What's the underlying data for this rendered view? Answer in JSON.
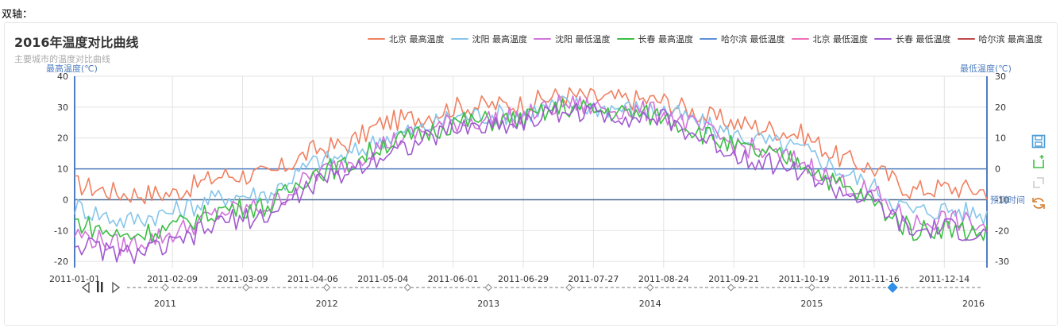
{
  "caption": "双轴：",
  "colors": {
    "beijing_high": "#f08060",
    "shenyang_high": "#86c5ea",
    "shenyang_low": "#d174dc",
    "changchun_high": "#3cbf44",
    "harbin_low": "#5b8fd6",
    "beijing_low": "#ee6fb6",
    "changchun_low": "#a05ad0",
    "harbin_high": "#c0494b",
    "axis_left": "#4f7ec0",
    "axis_right": "#4f7ec0"
  },
  "chart_data": {
    "type": "line",
    "title": "2016年温度对比曲线",
    "subtitle": "主要城市的温度对比曲线",
    "y_left": {
      "label": "最高温度(℃)",
      "ylim": [
        -22,
        40
      ],
      "ticks": [
        -20,
        -10,
        0,
        10,
        20,
        30,
        40
      ]
    },
    "y_right": {
      "label": "最低温度(℃)",
      "ylim": [
        -32,
        30
      ],
      "ticks": [
        -30,
        -20,
        -10,
        0,
        10,
        20,
        30
      ]
    },
    "x_axis": {
      "label": "预测时间",
      "type": "date",
      "range": [
        "2011-01-01",
        "2011-12-31"
      ],
      "tick_labels": [
        "2011-01-01",
        "2011-02-09",
        "2011-03-09",
        "2011-04-06",
        "2011-05-04",
        "2011-06-01",
        "2011-06-29",
        "2011-07-27",
        "2011-08-24",
        "2011-09-21",
        "2011-10-19",
        "2011-11-16",
        "2011-12-14"
      ]
    },
    "grid": true,
    "legend_position": "top-right",
    "series": [
      {
        "name": "北京 最高温度",
        "axis": "left",
        "color_key": "beijing_high",
        "points": [
          [
            "2011-01-01",
            5
          ],
          [
            "2011-01-20",
            2
          ],
          [
            "2011-02-09",
            2
          ],
          [
            "2011-03-01",
            8
          ],
          [
            "2011-03-20",
            8
          ],
          [
            "2011-04-06",
            16
          ],
          [
            "2011-04-20",
            18
          ],
          [
            "2011-05-04",
            25
          ],
          [
            "2011-05-20",
            27
          ],
          [
            "2011-06-01",
            30
          ],
          [
            "2011-06-29",
            31
          ],
          [
            "2011-07-15",
            34
          ],
          [
            "2011-07-27",
            33
          ],
          [
            "2011-08-24",
            32
          ],
          [
            "2011-09-10",
            27
          ],
          [
            "2011-09-21",
            25
          ],
          [
            "2011-10-19",
            21
          ],
          [
            "2011-11-01",
            14
          ],
          [
            "2011-11-16",
            10
          ],
          [
            "2011-12-01",
            3
          ],
          [
            "2011-12-14",
            4
          ],
          [
            "2011-12-31",
            3
          ]
        ]
      },
      {
        "name": "沈阳 最高温度",
        "axis": "left",
        "color_key": "shenyang_high",
        "points": [
          [
            "2011-01-01",
            -2
          ],
          [
            "2011-01-20",
            -7
          ],
          [
            "2011-02-09",
            -4
          ],
          [
            "2011-03-01",
            1
          ],
          [
            "2011-03-20",
            2
          ],
          [
            "2011-04-06",
            12
          ],
          [
            "2011-04-20",
            14
          ],
          [
            "2011-05-04",
            20
          ],
          [
            "2011-05-20",
            23
          ],
          [
            "2011-06-01",
            27
          ],
          [
            "2011-06-29",
            28
          ],
          [
            "2011-07-15",
            31
          ],
          [
            "2011-07-27",
            30
          ],
          [
            "2011-08-24",
            29
          ],
          [
            "2011-09-10",
            24
          ],
          [
            "2011-09-21",
            21
          ],
          [
            "2011-10-19",
            16
          ],
          [
            "2011-11-01",
            10
          ],
          [
            "2011-11-16",
            4
          ],
          [
            "2011-12-01",
            -4
          ],
          [
            "2011-12-14",
            -3
          ],
          [
            "2011-12-31",
            -5
          ]
        ]
      },
      {
        "name": "沈阳 最低温度",
        "axis": "right",
        "color_key": "shenyang_low",
        "points": [
          [
            "2011-01-01",
            -21
          ],
          [
            "2011-01-20",
            -25
          ],
          [
            "2011-02-09",
            -21
          ],
          [
            "2011-03-01",
            -14
          ],
          [
            "2011-03-20",
            -12
          ],
          [
            "2011-04-06",
            -2
          ],
          [
            "2011-04-20",
            2
          ],
          [
            "2011-05-04",
            8
          ],
          [
            "2011-05-20",
            12
          ],
          [
            "2011-06-01",
            15
          ],
          [
            "2011-06-29",
            17
          ],
          [
            "2011-07-15",
            21
          ],
          [
            "2011-07-27",
            20
          ],
          [
            "2011-08-24",
            18
          ],
          [
            "2011-09-10",
            12
          ],
          [
            "2011-09-21",
            8
          ],
          [
            "2011-10-19",
            2
          ],
          [
            "2011-11-01",
            -4
          ],
          [
            "2011-11-16",
            -8
          ],
          [
            "2011-12-01",
            -18
          ],
          [
            "2011-12-14",
            -16
          ],
          [
            "2011-12-31",
            -19
          ]
        ]
      },
      {
        "name": "长春 最高温度",
        "axis": "left",
        "color_key": "changchun_high",
        "points": [
          [
            "2011-01-01",
            -7
          ],
          [
            "2011-01-20",
            -12
          ],
          [
            "2011-02-09",
            -9
          ],
          [
            "2011-03-01",
            -3
          ],
          [
            "2011-03-20",
            -2
          ],
          [
            "2011-04-06",
            9
          ],
          [
            "2011-04-20",
            11
          ],
          [
            "2011-05-04",
            18
          ],
          [
            "2011-05-20",
            21
          ],
          [
            "2011-06-01",
            25
          ],
          [
            "2011-06-29",
            26
          ],
          [
            "2011-07-15",
            30
          ],
          [
            "2011-07-27",
            29
          ],
          [
            "2011-08-24",
            27
          ],
          [
            "2011-09-10",
            21
          ],
          [
            "2011-09-21",
            17
          ],
          [
            "2011-10-19",
            12
          ],
          [
            "2011-11-01",
            5
          ],
          [
            "2011-11-16",
            -1
          ],
          [
            "2011-12-01",
            -10
          ],
          [
            "2011-12-14",
            -9
          ],
          [
            "2011-12-31",
            -11
          ]
        ]
      },
      {
        "name": "哈尔滨 最低温度",
        "axis": "right",
        "color_key": "harbin_low",
        "points": []
      },
      {
        "name": "北京 最低温度",
        "axis": "right",
        "color_key": "beijing_low",
        "points": []
      },
      {
        "name": "长春 最低温度",
        "axis": "right",
        "color_key": "changchun_low",
        "points": [
          [
            "2011-01-01",
            -24
          ],
          [
            "2011-01-20",
            -28
          ],
          [
            "2011-02-09",
            -25
          ],
          [
            "2011-03-01",
            -17
          ],
          [
            "2011-03-20",
            -15
          ],
          [
            "2011-04-06",
            -5
          ],
          [
            "2011-04-20",
            -1
          ],
          [
            "2011-05-04",
            5
          ],
          [
            "2011-05-20",
            9
          ],
          [
            "2011-06-01",
            13
          ],
          [
            "2011-06-29",
            15
          ],
          [
            "2011-07-15",
            19
          ],
          [
            "2011-07-27",
            18
          ],
          [
            "2011-08-24",
            16
          ],
          [
            "2011-09-10",
            9
          ],
          [
            "2011-09-21",
            5
          ],
          [
            "2011-10-19",
            -1
          ],
          [
            "2011-11-01",
            -7
          ],
          [
            "2011-11-16",
            -11
          ],
          [
            "2011-12-01",
            -21
          ],
          [
            "2011-12-14",
            -19
          ],
          [
            "2011-12-31",
            -22
          ]
        ]
      },
      {
        "name": "哈尔滨 最高温度",
        "axis": "left",
        "color_key": "harbin_high",
        "points": []
      }
    ],
    "timeline": {
      "years": [
        "2011",
        "2012",
        "2013",
        "2014",
        "2015",
        "2016"
      ],
      "current_index": 5
    }
  },
  "toolbox": [
    {
      "name": "save-as-image-icon"
    },
    {
      "name": "data-zoom-icon"
    },
    {
      "name": "zoom-reset-icon"
    },
    {
      "name": "restore-icon"
    }
  ]
}
